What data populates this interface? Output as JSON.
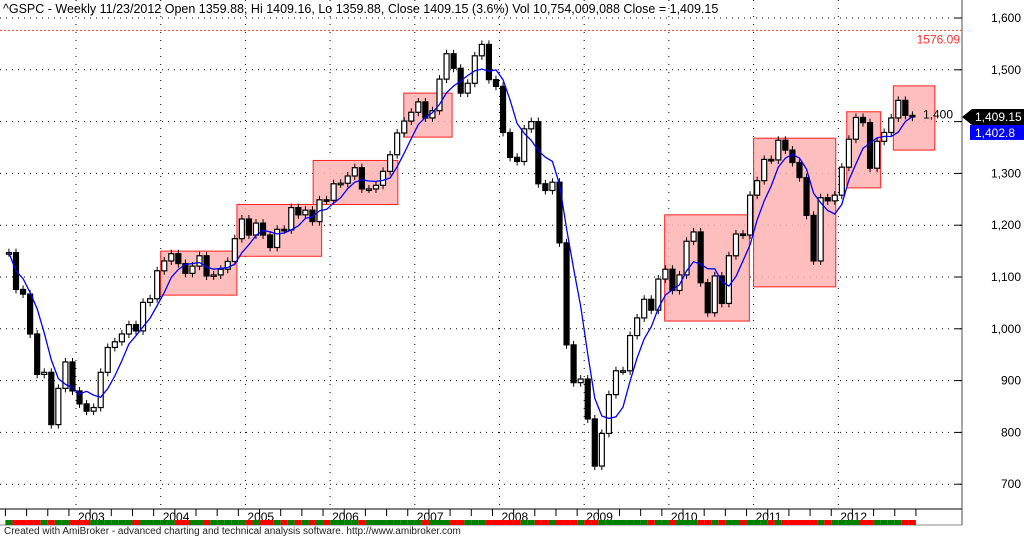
{
  "header": {
    "title": "^GSPC - Weekly 11/23/2012 Open 1359.88, Hi 1409.16, Lo 1359.88, Close 1409.15 (3.6%) Vol 10,754,009,088 Close = 1,409.15"
  },
  "footer": {
    "text": "Created with AmiBroker - advanced charting and technical analysis software. http://www.amibroker.com"
  },
  "colors": {
    "price": "#000000",
    "moving_average": "#0000ff",
    "box_fill": "#ffb3b3",
    "box_stroke": "#ff2020",
    "high_line": "#ff3030",
    "up": "#008000",
    "down": "#ff0000"
  },
  "chart_data": {
    "type": "line",
    "title": "",
    "ylim": [
      650,
      1620
    ],
    "y_ticks": [
      "1,600",
      "1,500",
      "1,400",
      "1,300",
      "1,200",
      "1,100",
      "1,000",
      "900",
      "800",
      "700"
    ],
    "y_tick_values": [
      1600,
      1500,
      1400,
      1300,
      1200,
      1100,
      1000,
      900,
      800,
      700
    ],
    "x_tick_labels": [
      "2003",
      "2004",
      "2005",
      "2006",
      "2007",
      "2008",
      "2009",
      "2010",
      "2011",
      "2012"
    ],
    "grid": true,
    "start_month": "2002-03",
    "series": [
      {
        "role": "price",
        "values": [
          1147,
          1076,
          1067,
          990,
          912,
          916,
          815,
          885,
          936,
          880,
          855,
          841,
          848,
          916,
          964,
          975,
          990,
          1008,
          996,
          1051,
          1058,
          1112,
          1131,
          1145,
          1126,
          1107,
          1121,
          1141,
          1102,
          1104,
          1115,
          1130,
          1174,
          1212,
          1181,
          1204,
          1181,
          1157,
          1192,
          1191,
          1234,
          1220,
          1229,
          1207,
          1249,
          1248,
          1280,
          1281,
          1295,
          1311,
          1270,
          1270,
          1277,
          1304,
          1336,
          1378,
          1401,
          1418,
          1438,
          1407,
          1421,
          1482,
          1531,
          1503,
          1455,
          1474,
          1527,
          1549,
          1481,
          1468,
          1379,
          1331,
          1323,
          1386,
          1400,
          1280,
          1267,
          1283,
          1166,
          969,
          896,
          903,
          826,
          735,
          798,
          873,
          919,
          919,
          987,
          1021,
          1057,
          1036,
          1096,
          1115,
          1074,
          1104,
          1169,
          1187,
          1089,
          1031,
          1102,
          1049,
          1141,
          1183,
          1181,
          1258,
          1286,
          1327,
          1326,
          1364,
          1345,
          1321,
          1292,
          1219,
          1131,
          1253,
          1247,
          1258,
          1312,
          1366,
          1408,
          1398,
          1310,
          1362,
          1379,
          1407,
          1441,
          1412,
          1409
        ]
      }
    ],
    "boxes": [
      {
        "from": 2004.0,
        "to": 2004.9,
        "high": 1150,
        "low": 1065
      },
      {
        "from": 2004.9,
        "to": 2005.9,
        "high": 1240,
        "low": 1140
      },
      {
        "from": 2005.8,
        "to": 2006.8,
        "high": 1325,
        "low": 1240
      },
      {
        "from": 2006.87,
        "to": 2007.44,
        "high": 1455,
        "low": 1370
      },
      {
        "from": 2009.95,
        "to": 2010.95,
        "high": 1220,
        "low": 1015
      },
      {
        "from": 2011.0,
        "to": 2011.97,
        "high": 1368,
        "low": 1081
      },
      {
        "from": 2012.1,
        "to": 2012.5,
        "high": 1419,
        "low": 1272
      },
      {
        "from": 2012.65,
        "to": 2013.14,
        "high": 1469,
        "low": 1345
      }
    ],
    "high_line": {
      "value": 1576.09,
      "label": "1576.09"
    },
    "last_close_label": "1,409.15",
    "ma_label": "1,402.8"
  }
}
